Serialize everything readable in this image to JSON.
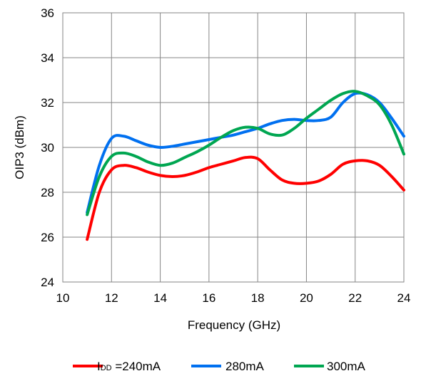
{
  "chart_data": {
    "type": "line",
    "xlabel": "Frequency (GHz)",
    "ylabel": "OIP3 (dBm)",
    "xlim": [
      10,
      24
    ],
    "ylim": [
      24,
      36
    ],
    "xticks": [
      "10",
      "12",
      "14",
      "16",
      "18",
      "20",
      "22",
      "24"
    ],
    "yticks": [
      "24",
      "26",
      "28",
      "30",
      "32",
      "34",
      "36"
    ],
    "grid": true,
    "legend": "bottom",
    "series": [
      {
        "name": "IDD =240mA",
        "legend_prefix": "I",
        "legend_sub": "DD",
        "legend_suffix": " =240mA",
        "color": "#ff0000",
        "x": [
          11,
          11.5,
          12,
          12.5,
          13,
          13.5,
          14,
          14.5,
          15,
          15.5,
          16,
          16.5,
          17,
          17.5,
          18,
          18.5,
          19,
          19.5,
          20,
          20.5,
          21,
          21.5,
          22,
          22.5,
          23,
          23.5,
          24
        ],
        "y": [
          25.9,
          28.0,
          29.0,
          29.2,
          29.1,
          28.9,
          28.75,
          28.7,
          28.75,
          28.9,
          29.1,
          29.25,
          29.4,
          29.55,
          29.5,
          29.0,
          28.55,
          28.4,
          28.4,
          28.5,
          28.8,
          29.25,
          29.4,
          29.4,
          29.2,
          28.7,
          28.1
        ]
      },
      {
        "name": "280mA",
        "color": "#0070f0",
        "x": [
          11,
          11.5,
          12,
          12.5,
          13,
          13.5,
          14,
          14.5,
          15,
          15.5,
          16,
          16.5,
          17,
          17.5,
          18,
          18.5,
          19,
          19.5,
          20,
          20.5,
          21,
          21.5,
          22,
          22.5,
          23,
          23.5,
          24
        ],
        "y": [
          27.1,
          29.2,
          30.4,
          30.5,
          30.3,
          30.1,
          30.0,
          30.05,
          30.15,
          30.25,
          30.35,
          30.45,
          30.55,
          30.7,
          30.85,
          31.05,
          31.2,
          31.25,
          31.2,
          31.2,
          31.35,
          32.0,
          32.4,
          32.35,
          32.0,
          31.3,
          30.5
        ]
      },
      {
        "name": "300mA",
        "color": "#00a651",
        "x": [
          11,
          11.5,
          12,
          12.5,
          13,
          13.5,
          14,
          14.5,
          15,
          15.5,
          16,
          16.5,
          17,
          17.5,
          18,
          18.5,
          19,
          19.5,
          20,
          20.5,
          21,
          21.5,
          22,
          22.5,
          23,
          23.5,
          24
        ],
        "y": [
          27.0,
          28.7,
          29.6,
          29.75,
          29.6,
          29.35,
          29.2,
          29.3,
          29.55,
          29.8,
          30.1,
          30.45,
          30.75,
          30.9,
          30.85,
          30.6,
          30.55,
          30.85,
          31.3,
          31.7,
          32.1,
          32.4,
          32.5,
          32.3,
          31.9,
          31.0,
          29.7
        ]
      }
    ]
  }
}
